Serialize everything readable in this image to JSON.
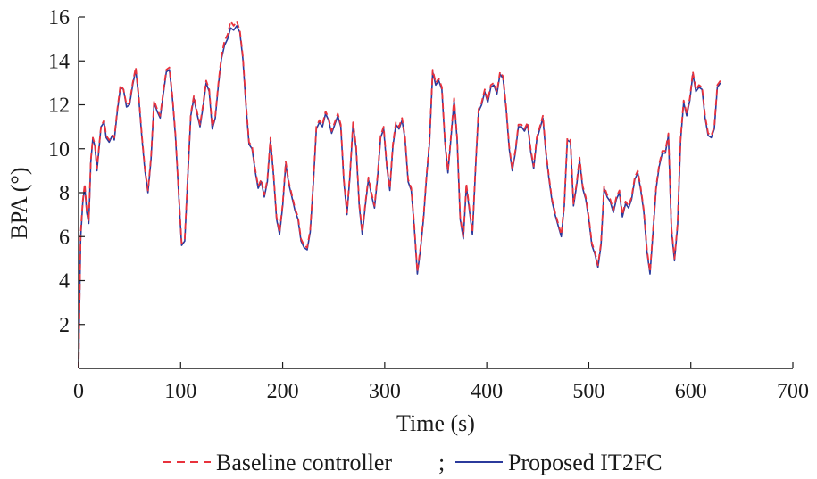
{
  "chart_data": {
    "type": "line",
    "xlabel": "Time (s)",
    "ylabel": "BPA (°)",
    "xlim": [
      0,
      700
    ],
    "ylim": [
      0,
      16
    ],
    "xticks": [
      0,
      100,
      200,
      300,
      400,
      500,
      600,
      700
    ],
    "yticks": [
      2,
      4,
      6,
      8,
      10,
      12,
      14,
      16
    ],
    "xtick_labels": [
      "0",
      "100",
      "200",
      "300",
      "400",
      "500",
      "600",
      "700"
    ],
    "ytick_labels": [
      "2",
      "4",
      "6",
      "8",
      "10",
      "12",
      "14",
      "16"
    ],
    "grid": false,
    "legend_position": "bottom",
    "legend_separator": ";",
    "x": [
      0,
      2,
      4,
      6,
      8,
      10,
      12,
      14,
      16,
      18,
      20,
      22,
      25,
      27,
      30,
      33,
      35,
      38,
      41,
      44,
      47,
      50,
      53,
      56,
      59,
      62,
      65,
      68,
      71,
      74,
      77,
      80,
      83,
      86,
      89,
      92,
      95,
      98,
      101,
      104,
      107,
      110,
      113,
      116,
      119,
      122,
      125,
      128,
      131,
      134,
      137,
      140,
      143,
      146,
      149,
      152,
      155,
      158,
      161,
      164,
      167,
      170,
      173,
      176,
      179,
      182,
      185,
      188,
      191,
      194,
      197,
      200,
      203,
      206,
      209,
      212,
      215,
      218,
      221,
      224,
      227,
      230,
      233,
      236,
      239,
      242,
      245,
      248,
      251,
      254,
      257,
      260,
      263,
      266,
      269,
      272,
      275,
      278,
      281,
      284,
      287,
      290,
      293,
      296,
      299,
      302,
      305,
      308,
      311,
      314,
      317,
      320,
      323,
      326,
      329,
      332,
      335,
      338,
      341,
      344,
      347,
      350,
      353,
      356,
      359,
      362,
      365,
      368,
      371,
      374,
      377,
      380,
      383,
      386,
      389,
      392,
      395,
      398,
      401,
      404,
      407,
      410,
      413,
      416,
      419,
      422,
      425,
      428,
      431,
      434,
      437,
      440,
      443,
      446,
      449,
      452,
      455,
      458,
      461,
      464,
      467,
      470,
      473,
      476,
      479,
      482,
      485,
      488,
      491,
      494,
      497,
      500,
      503,
      506,
      509,
      512,
      515,
      518,
      521,
      524,
      527,
      530,
      533,
      536,
      539,
      542,
      545,
      548,
      551,
      554,
      557,
      560,
      563,
      566,
      569,
      572,
      575,
      578,
      581,
      584,
      587,
      590,
      593,
      596,
      599,
      602,
      605,
      608,
      611,
      614,
      617,
      620,
      623,
      626,
      629
    ],
    "series": [
      {
        "name": "Baseline controller",
        "color": "#e8323c",
        "dash": "dashed",
        "values": [
          0,
          6.1,
          7.6,
          8.4,
          7.2,
          6.7,
          9.5,
          10.5,
          10.2,
          9.1,
          10.1,
          11.0,
          11.3,
          10.6,
          10.4,
          10.6,
          10.5,
          11.8,
          12.9,
          12.7,
          12.0,
          12.1,
          13.0,
          13.7,
          12.4,
          10.6,
          9.1,
          8.1,
          9.6,
          12.2,
          11.8,
          11.5,
          12.6,
          13.6,
          13.7,
          12.4,
          10.6,
          8.1,
          5.7,
          5.9,
          8.8,
          11.6,
          12.4,
          11.7,
          11.1,
          12.0,
          13.1,
          12.7,
          11.0,
          11.5,
          13.0,
          14.2,
          14.9,
          15.2,
          15.8,
          15.6,
          15.8,
          15.4,
          14.2,
          12.1,
          10.3,
          10.1,
          9.1,
          8.3,
          8.6,
          7.9,
          8.6,
          10.5,
          8.9,
          6.9,
          6.2,
          7.5,
          9.4,
          8.5,
          7.9,
          7.3,
          6.9,
          5.9,
          5.6,
          5.5,
          6.3,
          8.5,
          11.0,
          11.3,
          11.1,
          11.7,
          11.4,
          10.8,
          11.2,
          11.6,
          11.1,
          8.6,
          7.1,
          8.9,
          11.2,
          10.1,
          7.5,
          6.2,
          7.5,
          8.7,
          8.0,
          7.4,
          8.8,
          10.6,
          11.0,
          9.3,
          8.2,
          10.2,
          11.2,
          11.0,
          11.4,
          10.5,
          8.6,
          8.2,
          6.5,
          4.4,
          5.5,
          6.9,
          8.8,
          10.4,
          13.6,
          13.0,
          13.2,
          12.8,
          10.4,
          9.0,
          10.6,
          12.3,
          10.5,
          6.9,
          6.0,
          8.4,
          7.3,
          6.2,
          9.2,
          11.8,
          12.1,
          12.7,
          12.2,
          12.9,
          13.0,
          12.6,
          13.5,
          13.3,
          11.9,
          10.1,
          9.1,
          9.9,
          11.1,
          11.1,
          10.9,
          11.2,
          10.0,
          9.2,
          10.5,
          11.0,
          11.5,
          9.9,
          8.7,
          7.7,
          7.1,
          6.6,
          6.1,
          7.5,
          10.5,
          10.4,
          7.5,
          8.4,
          9.6,
          8.3,
          7.8,
          6.9,
          5.7,
          5.3,
          4.7,
          5.7,
          8.3,
          7.9,
          7.7,
          7.2,
          7.8,
          8.1,
          7.0,
          7.6,
          7.4,
          7.8,
          8.7,
          9.0,
          8.2,
          7.2,
          5.4,
          4.4,
          6.3,
          8.3,
          9.3,
          9.9,
          9.9,
          10.7,
          6.4,
          5.0,
          6.6,
          10.5,
          12.2,
          11.6,
          12.3,
          13.5,
          12.7,
          12.9,
          12.8,
          11.5,
          10.7,
          10.6,
          11.0,
          12.9,
          13.1
        ]
      },
      {
        "name": "Proposed IT2FC",
        "color": "#2b3a9c",
        "dash": "solid",
        "values": [
          0,
          5.9,
          7.5,
          8.3,
          7.1,
          6.6,
          9.4,
          10.5,
          10.1,
          9.0,
          10.0,
          11.0,
          11.2,
          10.5,
          10.3,
          10.6,
          10.4,
          11.7,
          12.8,
          12.7,
          11.9,
          12.0,
          12.9,
          13.6,
          12.3,
          10.5,
          9.0,
          8.0,
          9.5,
          12.1,
          11.7,
          11.4,
          12.5,
          13.5,
          13.6,
          12.3,
          10.5,
          8.0,
          5.6,
          5.8,
          8.7,
          11.5,
          12.3,
          11.6,
          11.0,
          11.9,
          13.0,
          12.6,
          10.9,
          11.4,
          12.9,
          14.1,
          14.7,
          15.0,
          15.5,
          15.4,
          15.6,
          15.3,
          14.1,
          12.0,
          10.2,
          10.0,
          9.0,
          8.2,
          8.5,
          7.8,
          8.5,
          10.4,
          8.8,
          6.8,
          6.1,
          7.4,
          9.3,
          8.4,
          7.8,
          7.2,
          6.8,
          5.8,
          5.5,
          5.4,
          6.2,
          8.4,
          10.9,
          11.2,
          11.0,
          11.6,
          11.3,
          10.7,
          11.1,
          11.5,
          11.0,
          8.5,
          7.0,
          8.8,
          11.1,
          10.0,
          7.4,
          6.1,
          7.4,
          8.6,
          7.9,
          7.3,
          8.7,
          10.5,
          10.9,
          9.2,
          8.1,
          10.1,
          11.1,
          10.9,
          11.3,
          10.4,
          8.5,
          8.1,
          6.4,
          4.3,
          5.4,
          6.8,
          8.7,
          10.3,
          13.5,
          12.9,
          13.1,
          12.7,
          10.3,
          8.9,
          10.5,
          12.2,
          10.4,
          6.8,
          5.9,
          8.3,
          7.2,
          6.1,
          9.1,
          11.7,
          12.0,
          12.6,
          12.1,
          12.8,
          12.9,
          12.5,
          13.4,
          13.2,
          11.8,
          10.0,
          9.0,
          9.8,
          11.0,
          11.0,
          10.8,
          11.1,
          9.9,
          9.1,
          10.4,
          10.9,
          11.4,
          9.8,
          8.6,
          7.6,
          7.0,
          6.5,
          6.0,
          7.4,
          10.4,
          10.3,
          7.4,
          8.3,
          9.5,
          8.2,
          7.7,
          6.8,
          5.6,
          5.2,
          4.6,
          5.6,
          8.2,
          7.8,
          7.6,
          7.1,
          7.7,
          8.0,
          6.9,
          7.5,
          7.3,
          7.7,
          8.6,
          8.9,
          8.1,
          7.1,
          5.3,
          4.3,
          6.2,
          8.2,
          9.2,
          9.8,
          9.8,
          10.6,
          6.3,
          4.9,
          6.5,
          10.4,
          12.1,
          11.5,
          12.2,
          13.4,
          12.6,
          12.8,
          12.7,
          11.4,
          10.6,
          10.5,
          10.9,
          12.8,
          13.0
        ]
      }
    ]
  }
}
